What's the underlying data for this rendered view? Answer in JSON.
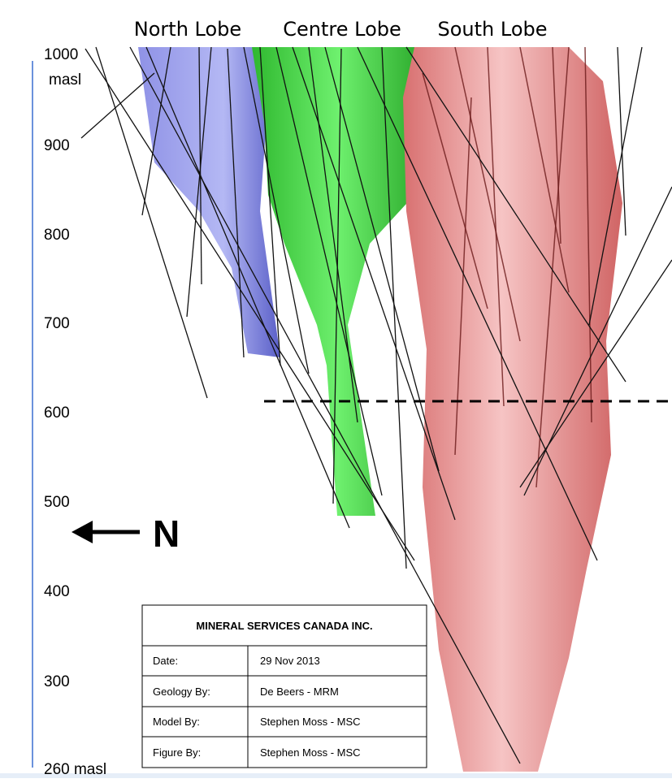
{
  "lobes": [
    "North Lobe",
    "Centre Lobe",
    "South Lobe"
  ],
  "elevations": [
    "1000",
    "masl",
    "900",
    "800",
    "700",
    "600",
    "500",
    "400",
    "300",
    "260 masl"
  ],
  "north_arrow": "N",
  "title_block": {
    "title": "MINERAL SERVICES CANADA INC.",
    "rows": [
      [
        "Date:",
        "29 Nov 2013"
      ],
      [
        "Geology By:",
        "De Beers - MRM"
      ],
      [
        "Model By:",
        "Stephen Moss - MSC"
      ],
      [
        "Figure By:",
        "Stephen Moss - MSC"
      ]
    ]
  }
}
